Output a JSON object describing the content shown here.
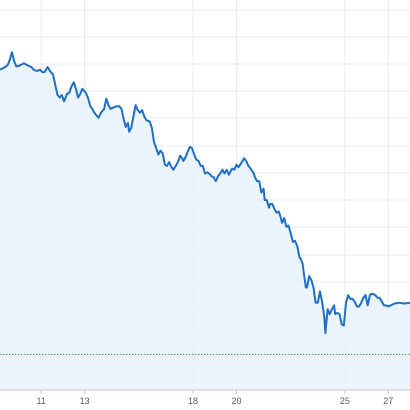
{
  "colors": {
    "line": "#1f6fc5",
    "area": "#e9f2fb",
    "reference": "#2f9e5b",
    "grid": "#e8ebef",
    "axis": "#c5cad1",
    "tick_text": "#555c66"
  },
  "chart_data": {
    "type": "area",
    "title": "",
    "xlabel": "",
    "ylabel": "",
    "x_tick_labels": [
      "11",
      "13",
      "18",
      "20",
      "25",
      "27"
    ],
    "x_tick_positions": [
      11,
      13,
      18,
      20,
      25,
      27
    ],
    "xlim": [
      9.1,
      28.0
    ],
    "ylim": [
      0,
      100
    ],
    "grid": true,
    "y_axis_labels_visible": false,
    "reference_line": {
      "style": "dotted",
      "value": 12
    },
    "series": [
      {
        "values": [
          [
            9.1,
            86.9
          ],
          [
            9.3,
            87.5
          ],
          [
            9.45,
            88.1
          ],
          [
            9.55,
            89.5
          ],
          [
            9.65,
            91.5
          ],
          [
            9.75,
            89.2
          ],
          [
            9.85,
            87.8
          ],
          [
            10.0,
            88.0
          ],
          [
            10.2,
            88.6
          ],
          [
            10.4,
            88.0
          ],
          [
            10.55,
            87.6
          ],
          [
            10.65,
            86.9
          ],
          [
            10.8,
            86.6
          ],
          [
            10.95,
            86.9
          ],
          [
            11.05,
            86.3
          ],
          [
            11.15,
            86.3
          ],
          [
            11.3,
            87.6
          ],
          [
            11.4,
            86.6
          ],
          [
            11.55,
            85.6
          ],
          [
            11.65,
            82.9
          ],
          [
            11.75,
            80.3
          ],
          [
            11.85,
            79.6
          ],
          [
            11.95,
            80.3
          ],
          [
            12.05,
            78.6
          ],
          [
            12.2,
            80.6
          ],
          [
            12.3,
            80.9
          ],
          [
            12.4,
            82.6
          ],
          [
            12.5,
            83.6
          ],
          [
            12.6,
            81.9
          ],
          [
            12.7,
            79.6
          ],
          [
            12.8,
            80.6
          ],
          [
            12.9,
            81.9
          ],
          [
            13.05,
            80.9
          ],
          [
            13.15,
            79.6
          ],
          [
            13.25,
            77.6
          ],
          [
            13.35,
            76.6
          ],
          [
            13.45,
            75.6
          ],
          [
            13.55,
            74.9
          ],
          [
            13.65,
            74.3
          ],
          [
            13.75,
            75.6
          ],
          [
            13.9,
            76.6
          ],
          [
            14.0,
            79.3
          ],
          [
            14.1,
            77.6
          ],
          [
            14.2,
            76.6
          ],
          [
            14.3,
            76.9
          ],
          [
            14.45,
            77.3
          ],
          [
            14.6,
            77.3
          ],
          [
            14.7,
            76.6
          ],
          [
            14.8,
            73.9
          ],
          [
            14.9,
            71.9
          ],
          [
            15.0,
            72.9
          ],
          [
            15.05,
            70.6
          ],
          [
            15.15,
            71.6
          ],
          [
            15.25,
            74.6
          ],
          [
            15.35,
            77.6
          ],
          [
            15.45,
            76.3
          ],
          [
            15.55,
            75.6
          ],
          [
            15.65,
            76.3
          ],
          [
            15.75,
            74.6
          ],
          [
            15.85,
            73.6
          ],
          [
            16.0,
            73.3
          ],
          [
            16.1,
            71.6
          ],
          [
            16.2,
            67.9
          ],
          [
            16.3,
            66.3
          ],
          [
            16.4,
            64.6
          ],
          [
            16.5,
            65.6
          ],
          [
            16.6,
            64.9
          ],
          [
            16.7,
            61.9
          ],
          [
            16.8,
            61.6
          ],
          [
            16.9,
            62.6
          ],
          [
            17.0,
            61.3
          ],
          [
            17.1,
            60.6
          ],
          [
            17.2,
            61.6
          ],
          [
            17.3,
            62.6
          ],
          [
            17.4,
            64.3
          ],
          [
            17.5,
            63.6
          ],
          [
            17.55,
            62.9
          ],
          [
            17.65,
            63.9
          ],
          [
            17.75,
            65.3
          ],
          [
            17.85,
            66.6
          ],
          [
            17.95,
            66.3
          ],
          [
            18.05,
            64.6
          ],
          [
            18.15,
            63.3
          ],
          [
            18.25,
            62.9
          ],
          [
            18.35,
            61.6
          ],
          [
            18.45,
            61.6
          ],
          [
            18.55,
            59.6
          ],
          [
            18.65,
            59.9
          ],
          [
            18.75,
            59.6
          ],
          [
            18.85,
            58.9
          ],
          [
            18.95,
            58.6
          ],
          [
            19.05,
            57.6
          ],
          [
            19.15,
            58.9
          ],
          [
            19.25,
            59.6
          ],
          [
            19.35,
            60.6
          ],
          [
            19.45,
            59.6
          ],
          [
            19.55,
            60.6
          ],
          [
            19.65,
            59.3
          ],
          [
            19.8,
            60.9
          ],
          [
            19.9,
            60.6
          ],
          [
            20.0,
            61.9
          ],
          [
            20.1,
            61.3
          ],
          [
            20.25,
            62.6
          ],
          [
            20.35,
            63.6
          ],
          [
            20.45,
            62.9
          ],
          [
            20.55,
            61.6
          ],
          [
            20.65,
            60.9
          ],
          [
            20.8,
            59.6
          ],
          [
            20.85,
            58.6
          ],
          [
            20.95,
            57.6
          ],
          [
            21.05,
            57.6
          ],
          [
            21.15,
            54.6
          ],
          [
            21.25,
            55.6
          ],
          [
            21.3,
            52.6
          ],
          [
            21.4,
            52.6
          ],
          [
            21.5,
            50.6
          ],
          [
            21.55,
            51.6
          ],
          [
            21.65,
            51.6
          ],
          [
            21.75,
            50.3
          ],
          [
            21.85,
            49.3
          ],
          [
            21.95,
            49.6
          ],
          [
            22.05,
            47.9
          ],
          [
            22.1,
            46.6
          ],
          [
            22.2,
            47.9
          ],
          [
            22.3,
            45.6
          ],
          [
            22.4,
            45.9
          ],
          [
            22.5,
            43.9
          ],
          [
            22.6,
            41.6
          ],
          [
            22.7,
            41.9
          ],
          [
            22.8,
            40.6
          ],
          [
            22.9,
            37.6
          ],
          [
            22.95,
            37.3
          ],
          [
            23.05,
            35.9
          ],
          [
            23.1,
            33.6
          ],
          [
            23.2,
            29.6
          ],
          [
            23.25,
            29.6
          ],
          [
            23.35,
            32.6
          ],
          [
            23.45,
            31.6
          ],
          [
            23.55,
            29.6
          ],
          [
            23.65,
            25.6
          ],
          [
            23.75,
            25.6
          ],
          [
            23.85,
            28.6
          ],
          [
            23.95,
            25.9
          ],
          [
            24.05,
            21.9
          ],
          [
            24.1,
            17.6
          ],
          [
            24.2,
            23.9
          ],
          [
            24.3,
            22.6
          ],
          [
            24.4,
            23.9
          ],
          [
            24.5,
            24.9
          ],
          [
            24.55,
            22.6
          ],
          [
            24.65,
            22.9
          ],
          [
            24.75,
            22.6
          ],
          [
            24.85,
            19.9
          ],
          [
            24.95,
            19.6
          ],
          [
            25.05,
            25.6
          ],
          [
            25.15,
            27.6
          ],
          [
            25.25,
            26.6
          ],
          [
            25.35,
            26.6
          ],
          [
            25.45,
            25.9
          ],
          [
            25.55,
            24.6
          ],
          [
            25.65,
            24.6
          ],
          [
            25.75,
            25.6
          ],
          [
            25.85,
            26.9
          ],
          [
            25.95,
            27.6
          ],
          [
            26.05,
            24.9
          ],
          [
            26.15,
            27.6
          ],
          [
            26.2,
            27.9
          ],
          [
            26.3,
            27.9
          ],
          [
            26.4,
            27.6
          ],
          [
            26.5,
            26.9
          ],
          [
            26.6,
            26.9
          ],
          [
            26.7,
            25.9
          ],
          [
            26.8,
            24.9
          ],
          [
            26.9,
            24.9
          ],
          [
            27.0,
            24.6
          ],
          [
            27.1,
            24.9
          ],
          [
            27.3,
            25.4
          ],
          [
            27.5,
            25.6
          ],
          [
            27.7,
            25.4
          ],
          [
            27.9,
            25.5
          ],
          [
            28.0,
            25.5
          ]
        ]
      }
    ]
  }
}
